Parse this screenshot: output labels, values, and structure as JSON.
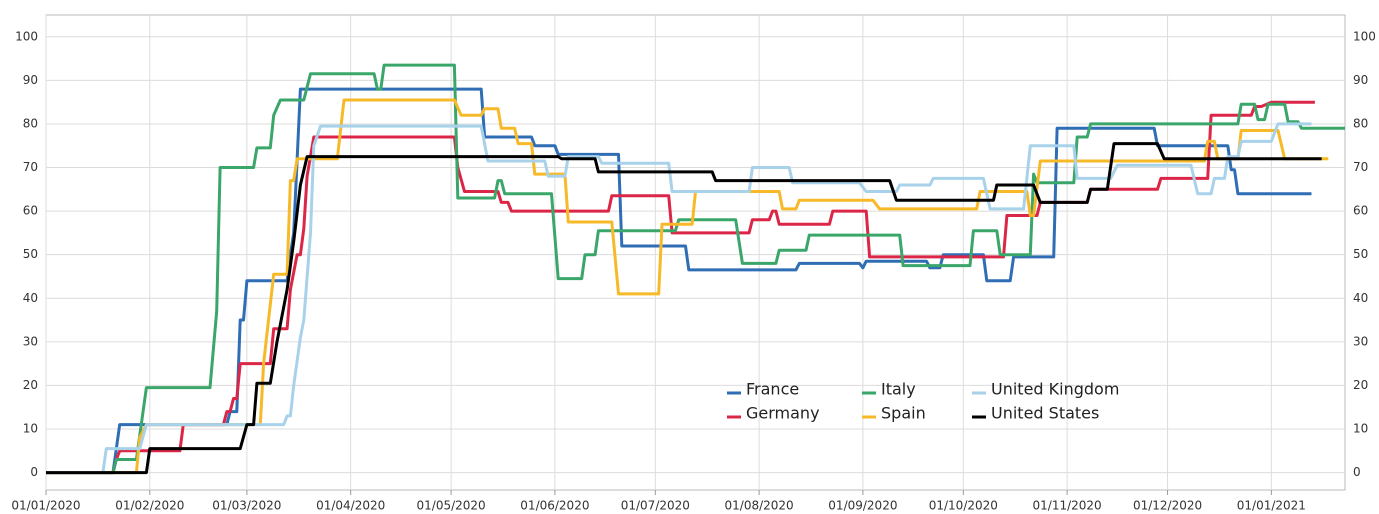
{
  "chart_data": {
    "type": "line",
    "xlim": [
      "01/01/2020",
      "23/01/2021"
    ],
    "xticks": [
      "01/01/2020",
      "01/02/2020",
      "01/03/2020",
      "01/04/2020",
      "01/05/2020",
      "01/06/2020",
      "01/07/2020",
      "01/08/2020",
      "01/09/2020",
      "01/10/2020",
      "01/11/2020",
      "01/12/2020",
      "01/01/2021"
    ],
    "ylim": [
      -4,
      105
    ],
    "yticks": [
      0,
      10,
      20,
      30,
      40,
      50,
      60,
      70,
      80,
      90,
      100
    ],
    "grid": true,
    "series": [
      {
        "name": "France",
        "color": "#2f6db5",
        "x": [
          "01/01/2020",
          "21/01/2020",
          "23/01/2020",
          "24/02/2020",
          "25/02/2020",
          "27/02/2020",
          "28/02/2020",
          "29/02/2020",
          "01/03/2020",
          "13/03/2020",
          "14/03/2020",
          "15/03/2020",
          "17/03/2020",
          "10/05/2020",
          "11/05/2020",
          "25/05/2020",
          "26/05/2020",
          "01/06/2020",
          "02/06/2020",
          "20/06/2020",
          "21/06/2020",
          "10/07/2020",
          "11/07/2020",
          "12/08/2020",
          "13/08/2020",
          "31/08/2020",
          "01/09/2020",
          "02/09/2020",
          "20/09/2020",
          "21/09/2020",
          "24/09/2020",
          "25/09/2020",
          "07/10/2020",
          "08/10/2020",
          "15/10/2020",
          "16/10/2020",
          "28/10/2020",
          "29/10/2020",
          "27/11/2020",
          "28/11/2020",
          "19/12/2020",
          "20/12/2020",
          "21/12/2020",
          "22/12/2020",
          "13/01/2021"
        ],
        "values": [
          0,
          0,
          11,
          11,
          14,
          14,
          35,
          35,
          44,
          44,
          50,
          55,
          88,
          88,
          77,
          77,
          75,
          75,
          73,
          73,
          52,
          52,
          46.5,
          46.5,
          48,
          48,
          47,
          48.5,
          48.5,
          47,
          47,
          50,
          50,
          44,
          44,
          49.5,
          49.5,
          79,
          79,
          75,
          75,
          69.5,
          69.5,
          64,
          64
        ]
      },
      {
        "name": "Germany",
        "color": "#dc2648",
        "x": [
          "01/01/2020",
          "21/01/2020",
          "22/01/2020",
          "23/01/2020",
          "10/02/2020",
          "11/02/2020",
          "23/02/2020",
          "24/02/2020",
          "25/02/2020",
          "26/02/2020",
          "27/02/2020",
          "28/02/2020",
          "08/03/2020",
          "09/03/2020",
          "13/03/2020",
          "14/03/2020",
          "16/03/2020",
          "17/03/2020",
          "18/03/2020",
          "19/03/2020",
          "21/03/2020",
          "02/05/2020",
          "03/05/2020",
          "05/05/2020",
          "15/05/2020",
          "16/05/2020",
          "18/05/2020",
          "19/05/2020",
          "17/06/2020",
          "18/06/2020",
          "05/07/2020",
          "06/07/2020",
          "29/07/2020",
          "30/07/2020",
          "04/08/2020",
          "05/08/2020",
          "06/08/2020",
          "07/08/2020",
          "22/08/2020",
          "23/08/2020",
          "02/09/2020",
          "03/09/2020",
          "13/10/2020",
          "14/10/2020",
          "23/10/2020",
          "24/10/2020",
          "07/11/2020",
          "08/11/2020",
          "28/11/2020",
          "29/11/2020",
          "13/12/2020",
          "14/12/2020",
          "26/12/2020",
          "27/12/2020",
          "29/12/2020",
          "01/01/2021",
          "14/01/2021"
        ],
        "values": [
          0,
          0,
          3,
          5,
          5,
          11,
          11,
          14,
          14,
          17,
          17,
          25,
          25,
          33,
          33,
          42,
          50,
          50,
          56,
          68,
          77,
          77,
          70,
          64.5,
          64.5,
          62,
          62,
          60,
          60,
          63.5,
          63.5,
          55,
          55,
          58,
          58,
          60,
          60,
          57,
          57,
          60,
          60,
          49.5,
          49.5,
          59,
          59,
          62,
          62,
          65,
          65,
          67.5,
          67.5,
          82,
          82,
          84,
          84,
          85,
          85
        ]
      },
      {
        "name": "Italy",
        "color": "#3aa66a",
        "x": [
          "01/01/2020",
          "21/01/2020",
          "22/01/2020",
          "28/01/2020",
          "31/01/2020",
          "19/02/2020",
          "21/02/2020",
          "22/02/2020",
          "03/03/2020",
          "04/03/2020",
          "08/03/2020",
          "09/03/2020",
          "11/03/2020",
          "18/03/2020",
          "20/03/2020",
          "08/04/2020",
          "09/04/2020",
          "10/04/2020",
          "11/04/2020",
          "02/05/2020",
          "03/05/2020",
          "14/05/2020",
          "15/05/2020",
          "16/05/2020",
          "17/05/2020",
          "31/05/2020",
          "02/06/2020",
          "09/06/2020",
          "10/06/2020",
          "13/06/2020",
          "14/06/2020",
          "07/07/2020",
          "08/07/2020",
          "25/07/2020",
          "27/07/2020",
          "06/08/2020",
          "07/08/2020",
          "15/08/2020",
          "16/08/2020",
          "12/09/2020",
          "13/09/2020",
          "03/10/2020",
          "04/10/2020",
          "11/10/2020",
          "12/10/2020",
          "21/10/2020",
          "22/10/2020",
          "23/10/2020",
          "03/11/2020",
          "04/11/2020",
          "07/11/2020",
          "08/11/2020",
          "22/12/2020",
          "23/12/2020",
          "27/12/2020",
          "28/12/2020",
          "30/12/2020",
          "31/12/2020",
          "05/01/2021",
          "06/01/2021",
          "09/01/2021",
          "10/01/2021",
          "23/01/2021"
        ],
        "values": [
          0,
          0,
          3,
          3,
          19.5,
          19.5,
          37,
          70,
          70,
          74.5,
          74.5,
          82,
          85.5,
          85.5,
          91.5,
          91.5,
          88,
          88,
          93.5,
          93.5,
          63,
          63,
          67,
          67,
          64,
          64,
          44.5,
          44.5,
          50,
          50,
          55.5,
          55.5,
          58,
          58,
          48,
          48,
          51,
          51,
          54.5,
          54.5,
          47.5,
          47.5,
          55.5,
          55.5,
          50,
          50,
          68.5,
          66.5,
          66.5,
          77,
          77,
          80,
          80,
          84.5,
          84.5,
          81,
          81,
          84.5,
          84.5,
          80.5,
          80.5,
          79,
          79
        ]
      },
      {
        "name": "Spain",
        "color": "#f7b928",
        "x": [
          "01/01/2020",
          "28/01/2020",
          "29/01/2020",
          "31/01/2020",
          "05/03/2020",
          "06/03/2020",
          "09/03/2020",
          "13/03/2020",
          "14/03/2020",
          "15/03/2020",
          "16/03/2020",
          "28/03/2020",
          "30/03/2020",
          "02/05/2020",
          "04/05/2020",
          "10/05/2020",
          "11/05/2020",
          "15/05/2020",
          "16/05/2020",
          "20/05/2020",
          "21/05/2020",
          "25/05/2020",
          "26/05/2020",
          "04/06/2020",
          "05/06/2020",
          "18/06/2020",
          "20/06/2020",
          "02/07/2020",
          "03/07/2020",
          "12/07/2020",
          "13/07/2020",
          "07/08/2020",
          "08/08/2020",
          "12/08/2020",
          "13/08/2020",
          "04/09/2020",
          "06/09/2020",
          "05/10/2020",
          "06/10/2020",
          "20/10/2020",
          "21/10/2020",
          "22/10/2020",
          "24/10/2020",
          "12/12/2020",
          "13/12/2020",
          "15/12/2020",
          "16/12/2020",
          "22/12/2020",
          "23/12/2020",
          "03/01/2021",
          "05/01/2021",
          "18/01/2021"
        ],
        "values": [
          0,
          0,
          8,
          11,
          11,
          25,
          45.5,
          45.5,
          67,
          67,
          72,
          72,
          85.5,
          85.5,
          82,
          82,
          83.5,
          83.5,
          79,
          79,
          75.5,
          75.5,
          68.5,
          68.5,
          57.5,
          57.5,
          41,
          41,
          57,
          57,
          64.5,
          64.5,
          60.5,
          60.5,
          62.5,
          62.5,
          60.5,
          60.5,
          64.5,
          64.5,
          59,
          59,
          71.5,
          71.5,
          76,
          76,
          72,
          72,
          78.5,
          78.5,
          72,
          72
        ]
      },
      {
        "name": "United Kingdom",
        "color": "#a8d2ea",
        "x": [
          "01/01/2020",
          "18/01/2020",
          "19/01/2020",
          "29/01/2020",
          "31/01/2020",
          "12/03/2020",
          "13/03/2020",
          "14/03/2020",
          "15/03/2020",
          "17/03/2020",
          "18/03/2020",
          "20/03/2020",
          "21/03/2020",
          "23/03/2020",
          "10/05/2020",
          "12/05/2020",
          "29/05/2020",
          "30/05/2020",
          "04/06/2020",
          "05/06/2020",
          "14/06/2020",
          "15/06/2020",
          "05/07/2020",
          "06/07/2020",
          "29/07/2020",
          "30/07/2020",
          "10/08/2020",
          "11/08/2020",
          "31/08/2020",
          "02/09/2020",
          "11/09/2020",
          "12/09/2020",
          "21/09/2020",
          "22/09/2020",
          "07/10/2020",
          "09/10/2020",
          "19/10/2020",
          "21/10/2020",
          "03/11/2020",
          "04/11/2020",
          "14/11/2020",
          "16/11/2020",
          "08/12/2020",
          "10/12/2020",
          "14/12/2020",
          "15/12/2020",
          "18/12/2020",
          "19/12/2020",
          "22/12/2020",
          "23/12/2020",
          "01/01/2021",
          "03/01/2021",
          "13/01/2021"
        ],
        "values": [
          0,
          0,
          5.5,
          5.5,
          11,
          11,
          13,
          13,
          20,
          31,
          35,
          55,
          75,
          79.5,
          79.5,
          71.5,
          71.5,
          68,
          68,
          72.5,
          72.5,
          71,
          71,
          64.5,
          64.5,
          70,
          70,
          66.5,
          66.5,
          64.5,
          64.5,
          66,
          66,
          67.5,
          67.5,
          60.5,
          60.5,
          75,
          75,
          67.5,
          67.5,
          70.5,
          70.5,
          64,
          64,
          67.5,
          67.5,
          72.5,
          72.5,
          76,
          76,
          80,
          80
        ]
      },
      {
        "name": "United States",
        "color": "#000000",
        "x": [
          "01/01/2020",
          "31/01/2020",
          "01/02/2020",
          "28/02/2020",
          "01/03/2020",
          "03/03/2020",
          "04/03/2020",
          "08/03/2020",
          "10/03/2020",
          "13/03/2020",
          "15/03/2020",
          "17/03/2020",
          "19/03/2020",
          "02/06/2020",
          "03/06/2020",
          "13/06/2020",
          "14/06/2020",
          "18/07/2020",
          "19/07/2020",
          "09/09/2020",
          "11/09/2020",
          "10/10/2020",
          "11/10/2020",
          "22/10/2020",
          "24/10/2020",
          "07/11/2020",
          "08/11/2020",
          "13/11/2020",
          "15/11/2020",
          "28/11/2020",
          "30/11/2020",
          "16/01/2021"
        ],
        "values": [
          0,
          0,
          5.5,
          5.5,
          11,
          11,
          20.5,
          20.5,
          30,
          42,
          53,
          66,
          72.5,
          72.5,
          72,
          72,
          69,
          69,
          67,
          67,
          62.5,
          62.5,
          66,
          66,
          62,
          62,
          65,
          65,
          75.5,
          75.5,
          72,
          72
        ]
      }
    ]
  }
}
